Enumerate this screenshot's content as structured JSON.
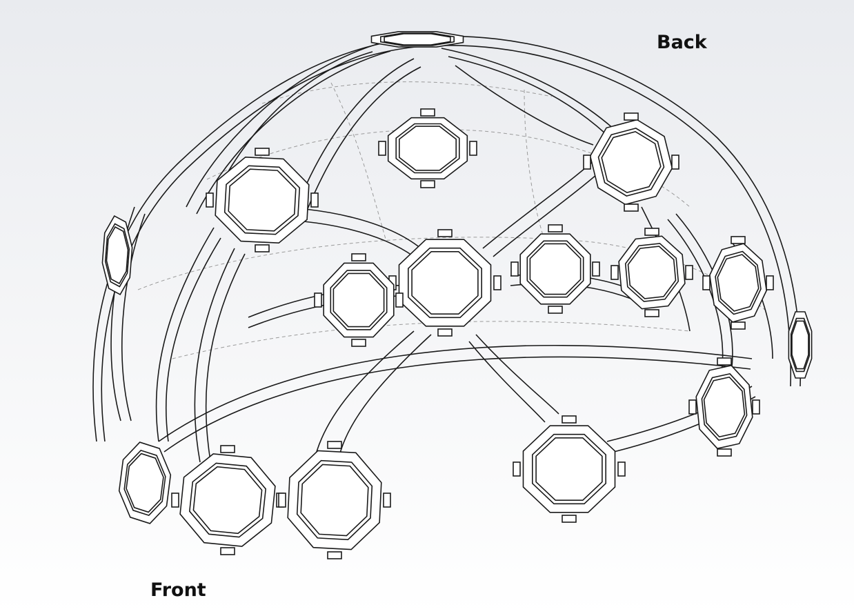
{
  "labels": {
    "back": "Back",
    "front": "Front"
  },
  "colors": {
    "line": "#1a1a1a",
    "hidden_line": "#9a9a9a",
    "background_top": "#e9ebef",
    "background_bottom": "#ffffff"
  }
}
